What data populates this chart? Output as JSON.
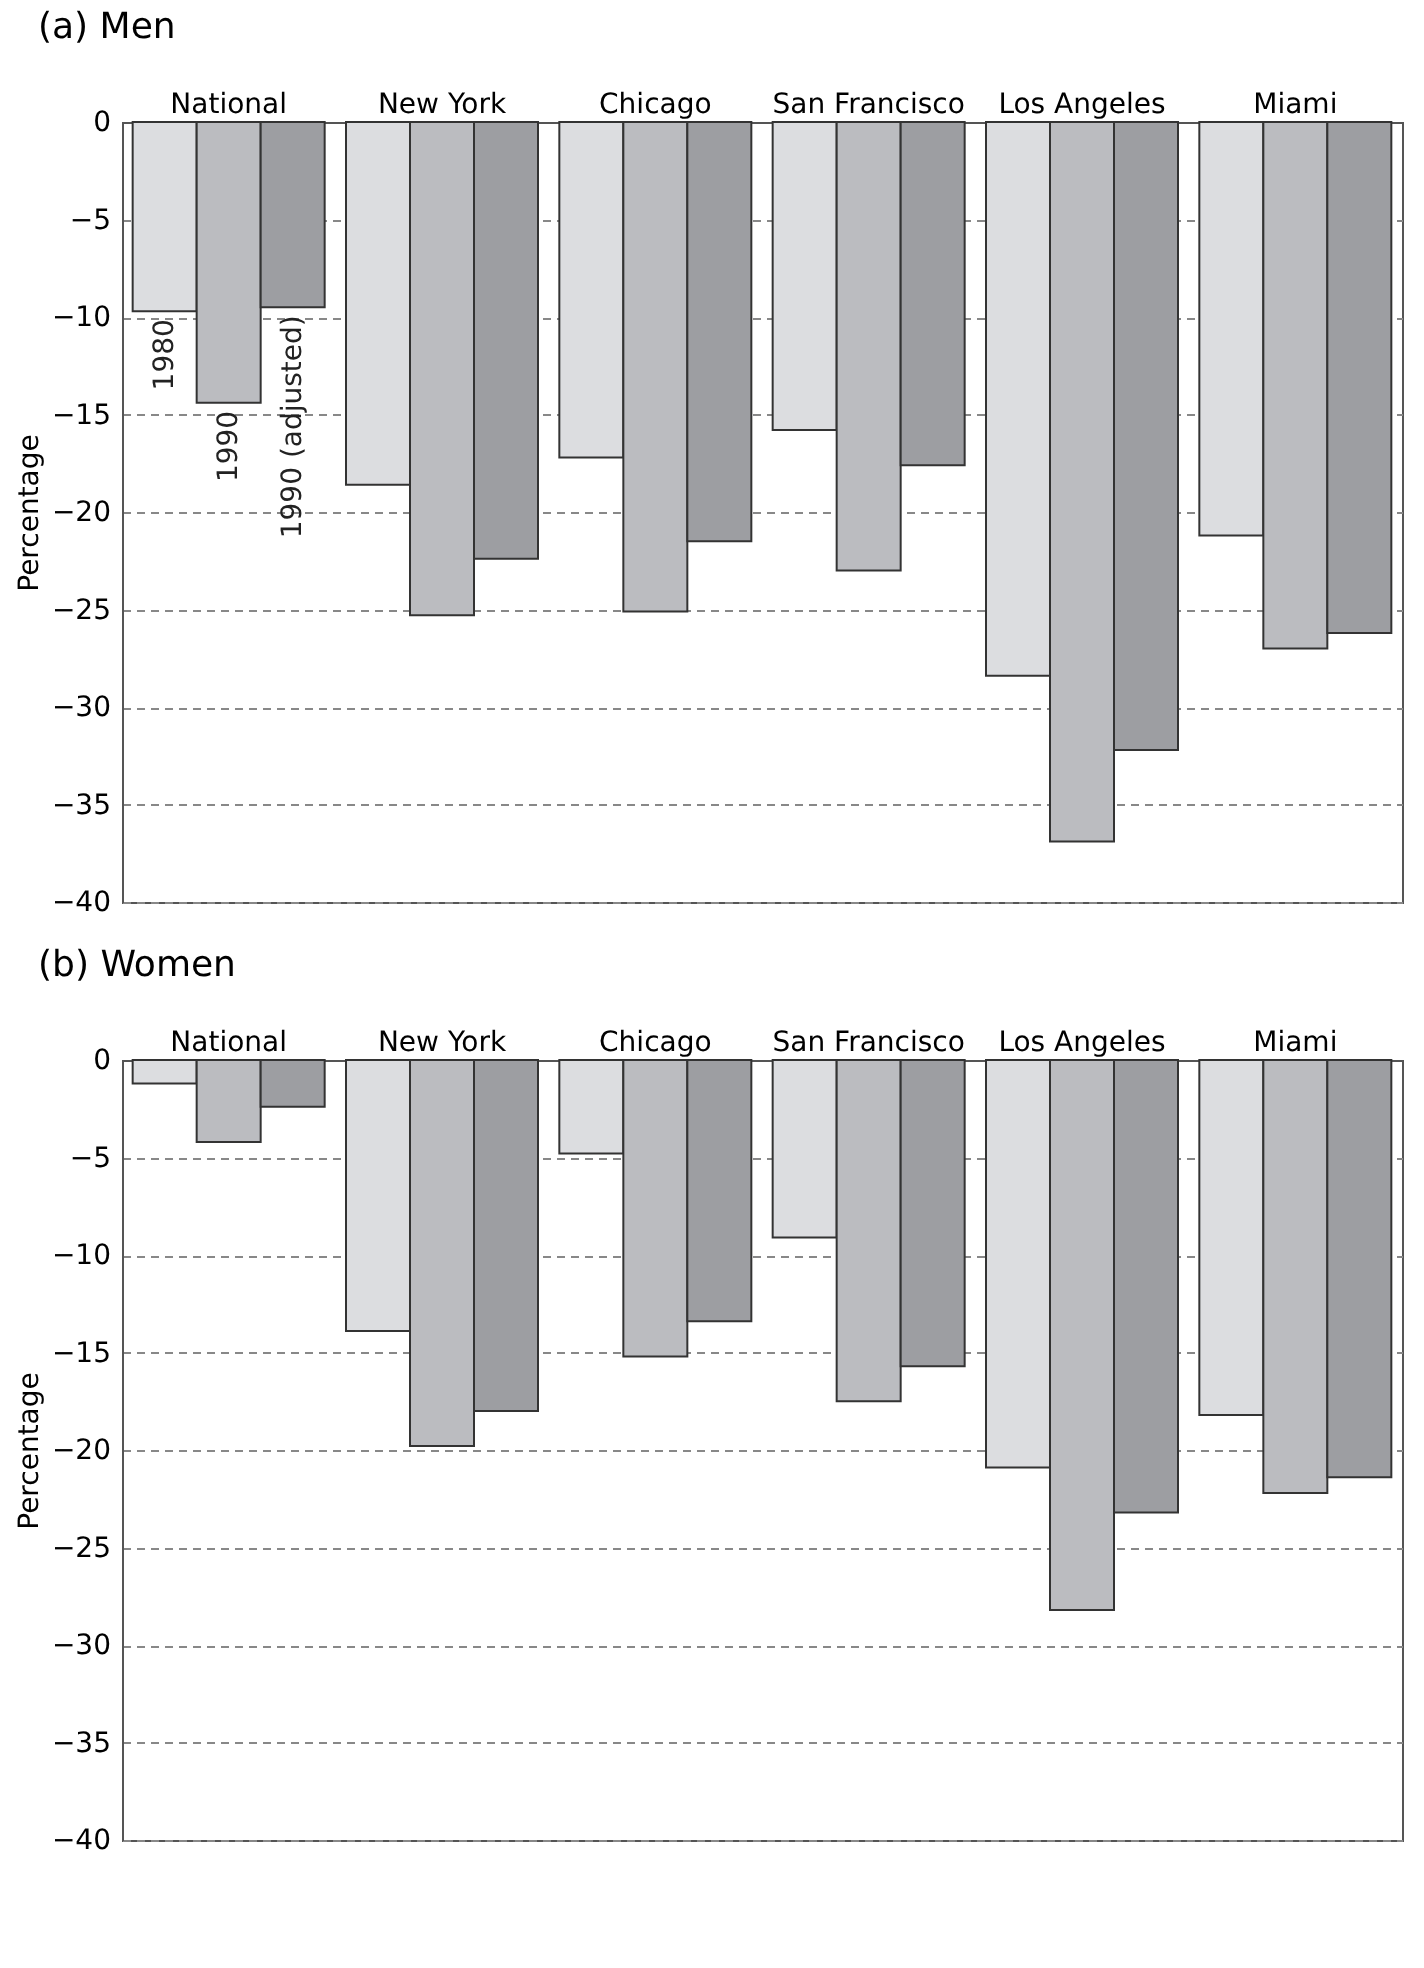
{
  "chart_data": [
    {
      "type": "bar",
      "title": "(a)  Men",
      "ylabel": "Percentage",
      "categories": [
        "National",
        "New York",
        "Chicago",
        "San Francisco",
        "Los Angeles",
        "Miami"
      ],
      "ylim": [
        -40,
        0
      ],
      "yticks": [
        0,
        -5,
        -10,
        -15,
        -20,
        -25,
        -30,
        -35,
        -40
      ],
      "grid": "y",
      "series": [
        {
          "name": "1980",
          "color": "#dcdde0",
          "values": [
            -9.7,
            -18.6,
            -17.2,
            -15.8,
            -28.4,
            -21.2
          ]
        },
        {
          "name": "1990",
          "color": "#bbbcc0",
          "values": [
            -14.4,
            -25.3,
            -25.1,
            -23.0,
            -36.9,
            -27.0
          ]
        },
        {
          "name": "1990 (adjusted)",
          "color": "#9d9ea2",
          "values": [
            -9.5,
            -22.4,
            -21.5,
            -17.6,
            -32.2,
            -26.2
          ]
        }
      ]
    },
    {
      "type": "bar",
      "title": "(b) Women",
      "ylabel": "Percentage",
      "categories": [
        "National",
        "New York",
        "Chicago",
        "San Francisco",
        "Los Angeles",
        "Miami"
      ],
      "ylim": [
        -40,
        0
      ],
      "yticks": [
        0,
        -5,
        -10,
        -15,
        -20,
        -25,
        -30,
        -35,
        -40
      ],
      "grid": "y",
      "series": [
        {
          "color": "#dcdde0",
          "values": [
            -1.2,
            -13.9,
            -4.8,
            -9.1,
            -20.9,
            -18.2
          ]
        },
        {
          "color": "#bbbcc0",
          "values": [
            -4.2,
            -19.8,
            -15.2,
            -17.5,
            -28.2,
            -22.2
          ]
        },
        {
          "color": "#9d9ea2",
          "values": [
            -2.4,
            -18.0,
            -13.4,
            -15.7,
            -23.2,
            -21.4
          ]
        }
      ]
    }
  ]
}
